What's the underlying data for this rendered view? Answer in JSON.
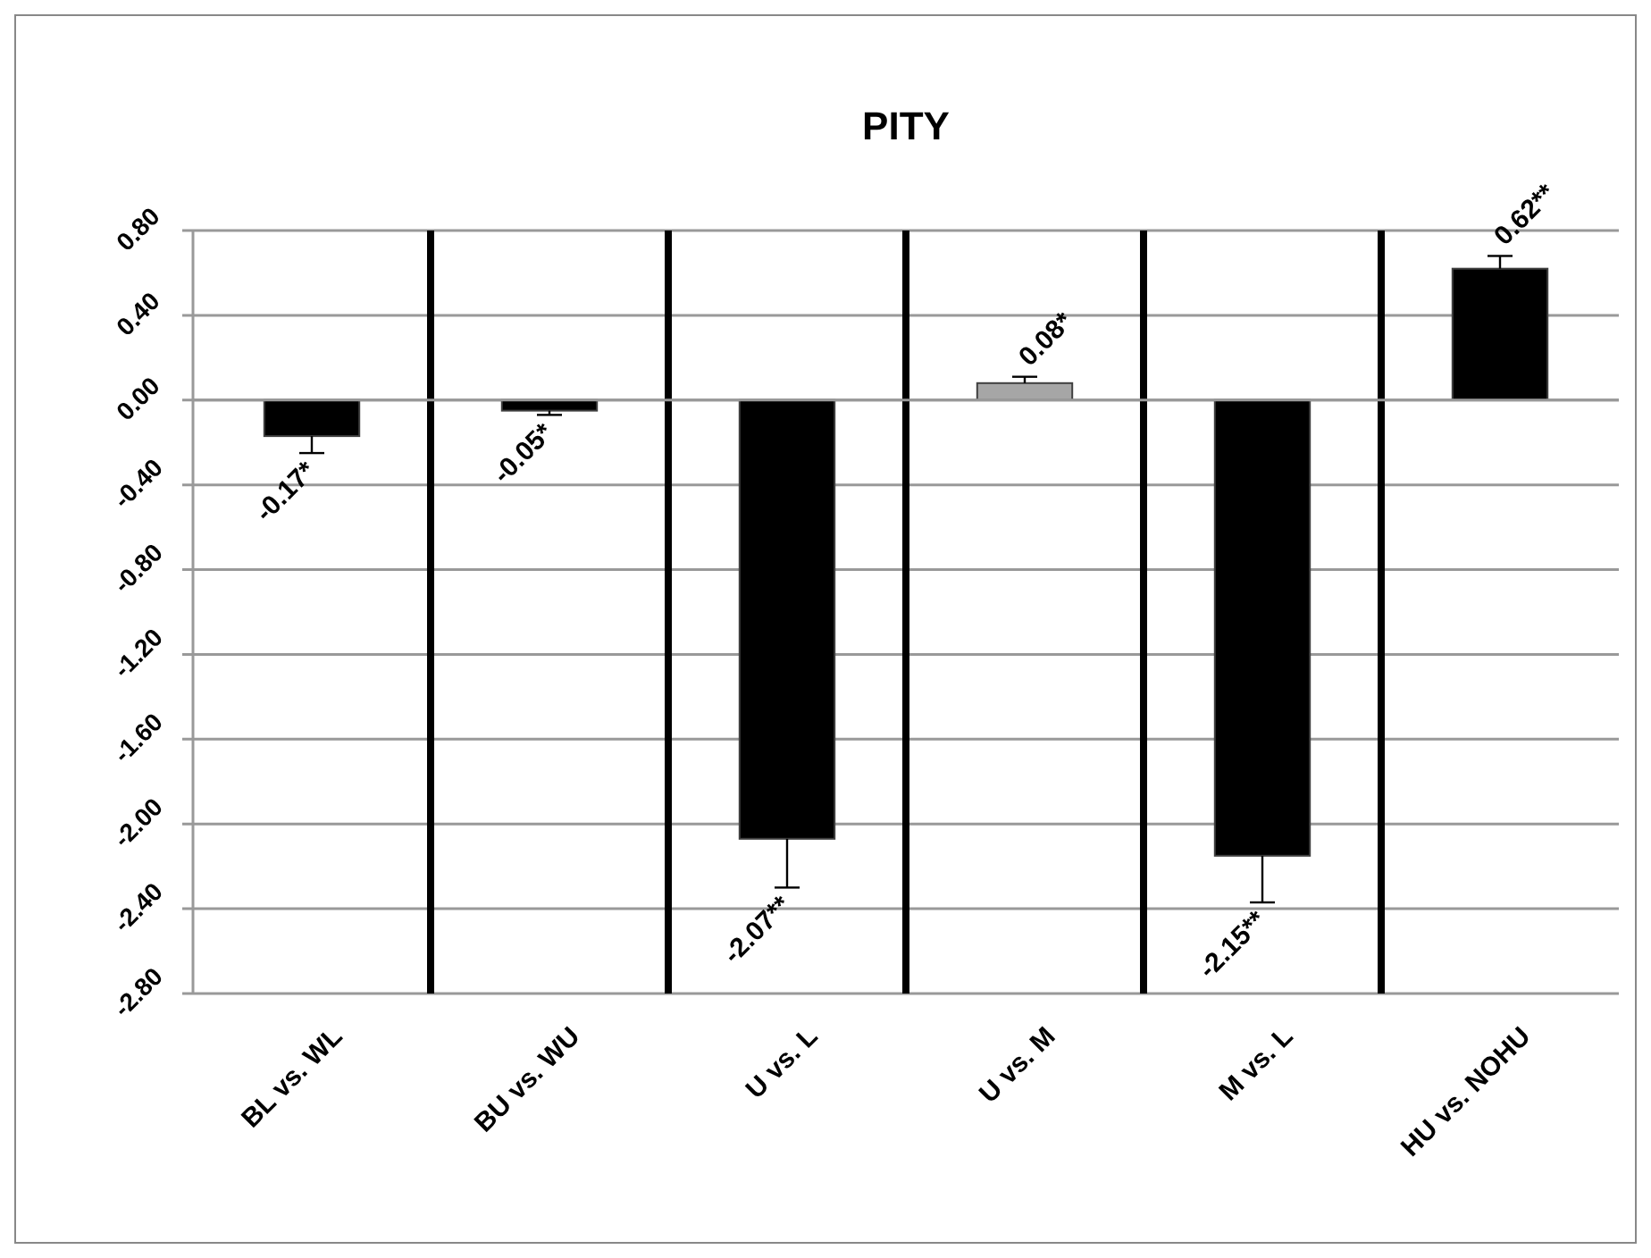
{
  "chart_data": {
    "type": "bar",
    "title": "PITY",
    "categories": [
      "BL vs. WL",
      "BU vs. WU",
      "U vs. L",
      "U vs. M",
      "M vs. L",
      "HU vs. NOHU"
    ],
    "values": [
      -0.17,
      -0.05,
      -2.07,
      0.08,
      -2.15,
      0.62
    ],
    "colors": [
      "#000000",
      "#000000",
      "#000000",
      "#a6a6a6",
      "#000000",
      "#000000"
    ],
    "errors": [
      [
        -0.25,
        -0.17
      ],
      [
        -0.07,
        -0.05
      ],
      [
        -2.3,
        -2.07
      ],
      [
        0.08,
        0.11
      ],
      [
        -2.37,
        -2.15
      ],
      [
        0.62,
        0.68
      ]
    ],
    "value_labels": [
      "-0.17*",
      "-0.05*",
      "-2.07**",
      "0.08*",
      "-2.15**",
      "0.62**"
    ],
    "ylim": [
      -2.8,
      0.8
    ],
    "yticks": [
      {
        "value": 0.8,
        "label": "0.80"
      },
      {
        "value": 0.4,
        "label": "0.40"
      },
      {
        "value": 0,
        "label": "0.00"
      },
      {
        "value": -0.4,
        "label": "-0.40"
      },
      {
        "value": -0.8,
        "label": "-0.80"
      },
      {
        "value": -1.2,
        "label": "-1.20"
      },
      {
        "value": -1.6,
        "label": "-1.60"
      },
      {
        "value": -2,
        "label": "-2.00"
      },
      {
        "value": -2.4,
        "label": "-2.40"
      },
      {
        "value": -2.8,
        "label": "-2.80"
      }
    ],
    "grid": "y"
  }
}
